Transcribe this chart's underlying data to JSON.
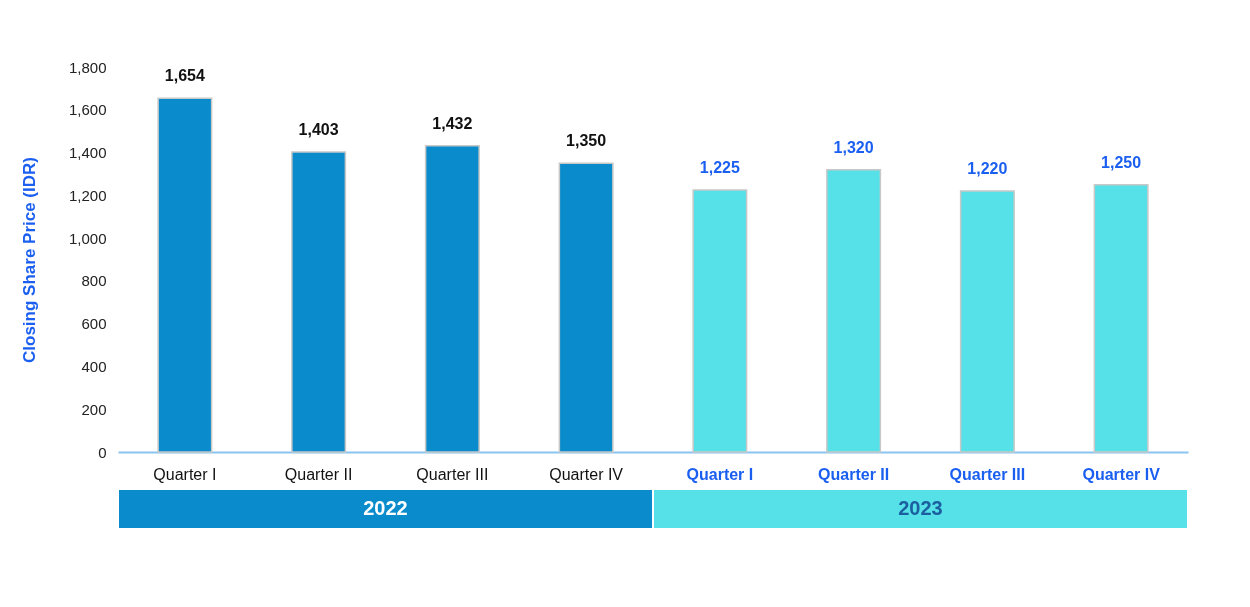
{
  "chart_data": {
    "type": "bar",
    "ylabel": "Closing Share Price (IDR)",
    "categories": [
      "Quarter I",
      "Quarter II",
      "Quarter III",
      "Quarter IV",
      "Quarter I",
      "Quarter II",
      "Quarter III",
      "Quarter IV"
    ],
    "series": [
      {
        "name": "2022",
        "color": "#0a8ccc",
        "values": [
          1654,
          1403,
          1432,
          1350,
          null,
          null,
          null,
          null
        ],
        "value_labels": [
          "1,654",
          "1,403",
          "1,432",
          "1,350",
          null,
          null,
          null,
          null
        ]
      },
      {
        "name": "2023",
        "color": "#55e1e7",
        "values": [
          null,
          null,
          null,
          null,
          1225,
          1320,
          1220,
          1250
        ],
        "value_labels": [
          null,
          null,
          null,
          null,
          "1,225",
          "1,320",
          "1,220",
          "1,250"
        ]
      }
    ],
    "ylim": [
      0,
      1800
    ],
    "yticks": [
      0,
      200,
      400,
      600,
      800,
      {
        "value": 1000,
        "label": "1,000"
      },
      {
        "value": 1200,
        "label": "1,200"
      },
      {
        "value": 1400,
        "label": "1,400"
      },
      {
        "value": 1600,
        "label": "1,600"
      },
      {
        "value": 1800,
        "label": "1,800"
      }
    ],
    "grid": false
  }
}
